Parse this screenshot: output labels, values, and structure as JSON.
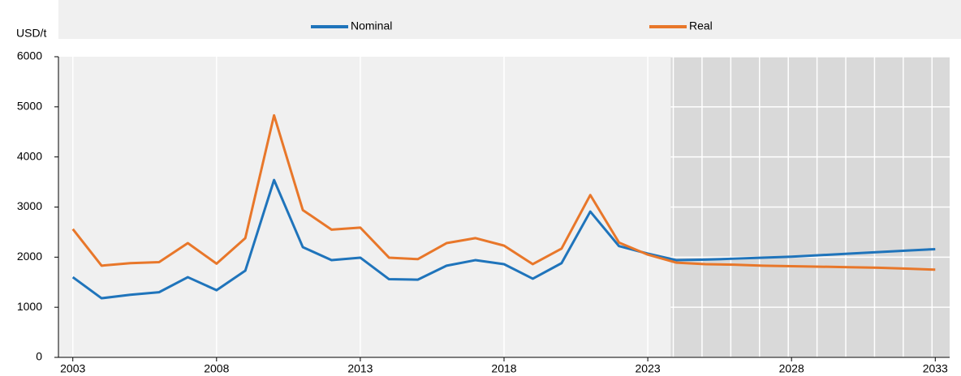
{
  "chart_data": {
    "type": "line",
    "y_axis_label": "USD/t",
    "x": [
      2003,
      2004,
      2005,
      2006,
      2007,
      2008,
      2009,
      2010,
      2011,
      2012,
      2013,
      2014,
      2015,
      2016,
      2017,
      2018,
      2019,
      2020,
      2021,
      2022,
      2023,
      2024,
      2025,
      2026,
      2027,
      2028,
      2029,
      2030,
      2031,
      2032,
      2033
    ],
    "series": [
      {
        "name": "Nominal",
        "color": "#1f74bb",
        "values": [
          1600,
          1180,
          1250,
          1300,
          1600,
          1340,
          1730,
          3540,
          2200,
          1940,
          1990,
          1560,
          1550,
          1830,
          1940,
          1860,
          1570,
          1880,
          2910,
          2220,
          2070,
          1940,
          1950,
          1970,
          1990,
          2010,
          2040,
          2070,
          2100,
          2130,
          2160
        ]
      },
      {
        "name": "Real",
        "color": "#e8772a",
        "values": [
          2560,
          1830,
          1880,
          1900,
          2280,
          1870,
          2380,
          4830,
          2940,
          2550,
          2590,
          1990,
          1960,
          2280,
          2380,
          2230,
          1860,
          2170,
          3240,
          2290,
          2050,
          1890,
          1860,
          1850,
          1830,
          1820,
          1810,
          1800,
          1790,
          1770,
          1750
        ]
      }
    ],
    "xlim": [
      2002.5,
      2033.5
    ],
    "xticks": [
      2003,
      2008,
      2013,
      2018,
      2023,
      2028,
      2033
    ],
    "ylim": [
      0,
      6000
    ],
    "yticks": [
      0,
      1000,
      2000,
      3000,
      4000,
      5000,
      6000
    ],
    "projection_start": 2023.8,
    "legend": "top"
  }
}
